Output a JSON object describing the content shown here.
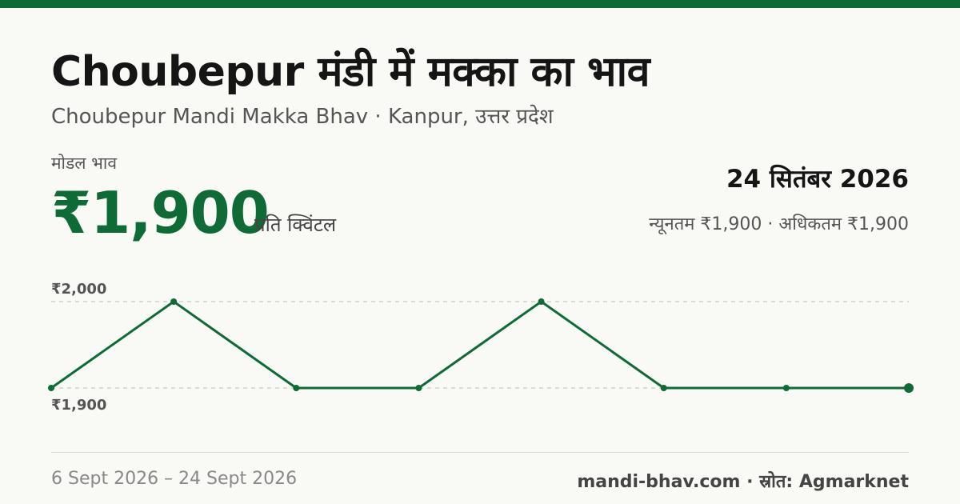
{
  "header": {
    "title": "Choubepur मंडी में मक्का का भाव",
    "subtitle": "Choubepur Mandi Makka Bhav · Kanpur, उत्तर प्रदेश"
  },
  "price": {
    "label": "मोडल भाव",
    "value": "₹1,900",
    "unit": "प्रति क्विंटल",
    "date": "24 सितंबर 2026",
    "min_max": "न्यूनतम ₹1,900 · अधिकतम ₹1,900"
  },
  "footer": {
    "range": "6 Sept 2026 – 24 Sept 2026",
    "source": "mandi-bhav.com · स्रोत: Agmarknet"
  },
  "colors": {
    "accent": "#0e6b35",
    "gridline": "#c9c9c4"
  },
  "chart_data": {
    "type": "line",
    "series": [
      {
        "values": [
          1900,
          2000,
          1900,
          1900,
          2000,
          1900,
          1900,
          1900
        ]
      }
    ],
    "y_ticks": [
      2000,
      1900
    ],
    "y_tick_labels": [
      "₹2,000",
      "₹1,900"
    ],
    "ylim": [
      1900,
      2000
    ],
    "grid": true,
    "highlight_last_point": true
  }
}
